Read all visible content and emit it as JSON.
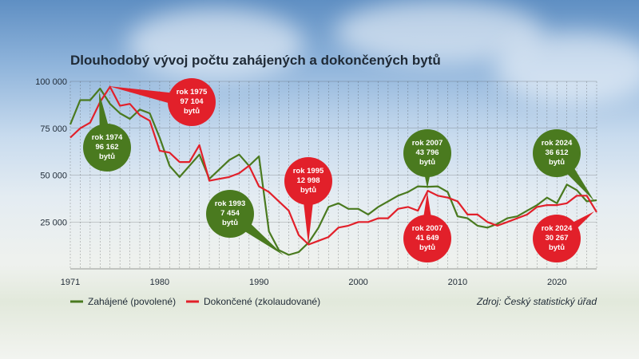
{
  "chart_data": {
    "type": "line",
    "title": "Dlouhodobý vývoj počtu zahájených a dokončených bytů",
    "xlim": [
      1971,
      2024
    ],
    "ylim": [
      0,
      100000
    ],
    "x_ticks": [
      "1971",
      "1980",
      "1990",
      "2000",
      "2010",
      "2020"
    ],
    "y_ticks": [
      "100 000",
      "75 000",
      "50 000",
      "25 000"
    ],
    "grid": "vertical dashed + horizontal",
    "legend_placement": "bottom-left",
    "series": [
      {
        "name": "Zahájené (povolené)",
        "color": "#4a7a1f",
        "x": [
          1971,
          1972,
          1973,
          1974,
          1975,
          1976,
          1977,
          1978,
          1979,
          1980,
          1981,
          1982,
          1983,
          1984,
          1985,
          1986,
          1987,
          1988,
          1989,
          1990,
          1991,
          1992,
          1993,
          1994,
          1995,
          1996,
          1997,
          1998,
          1999,
          2000,
          2001,
          2002,
          2003,
          2004,
          2005,
          2006,
          2007,
          2008,
          2009,
          2010,
          2011,
          2012,
          2013,
          2014,
          2015,
          2016,
          2017,
          2018,
          2019,
          2020,
          2021,
          2022,
          2023,
          2024
        ],
        "values": [
          77000,
          90000,
          90000,
          96162,
          88000,
          83000,
          80000,
          85000,
          83000,
          70000,
          55000,
          49000,
          55000,
          61000,
          48000,
          53000,
          58000,
          61000,
          55000,
          60000,
          20000,
          10000,
          7454,
          9000,
          14000,
          22000,
          33000,
          35000,
          32000,
          32000,
          29000,
          33000,
          36000,
          39000,
          41000,
          44000,
          43796,
          44000,
          41000,
          28000,
          27000,
          23000,
          22000,
          24000,
          27000,
          28000,
          31000,
          34000,
          38000,
          35000,
          45000,
          42000,
          36000,
          36612
        ]
      },
      {
        "name": "Dokončené (zkolaudované)",
        "color": "#e2202a",
        "x": [
          1971,
          1972,
          1973,
          1974,
          1975,
          1976,
          1977,
          1978,
          1979,
          1980,
          1981,
          1982,
          1983,
          1984,
          1985,
          1986,
          1987,
          1988,
          1989,
          1990,
          1991,
          1992,
          1993,
          1994,
          1995,
          1996,
          1997,
          1998,
          1999,
          2000,
          2001,
          2002,
          2003,
          2004,
          2005,
          2006,
          2007,
          2008,
          2009,
          2010,
          2011,
          2012,
          2013,
          2014,
          2015,
          2016,
          2017,
          2018,
          2019,
          2020,
          2021,
          2022,
          2023,
          2024
        ],
        "values": [
          70000,
          75000,
          78000,
          89000,
          97104,
          87000,
          88000,
          82000,
          79000,
          63000,
          62000,
          57000,
          57000,
          66000,
          47000,
          48000,
          49000,
          51000,
          55000,
          44000,
          41000,
          36000,
          31000,
          18000,
          12998,
          15000,
          17000,
          22000,
          23000,
          25000,
          25000,
          27000,
          27000,
          32000,
          33000,
          31000,
          41649,
          39000,
          38000,
          36000,
          29000,
          29000,
          25000,
          23000,
          25000,
          27000,
          29000,
          33000,
          34000,
          34000,
          35000,
          39000,
          39000,
          30267
        ]
      }
    ],
    "callouts": [
      {
        "lines": [
          "rok 1974",
          "96 162",
          "bytů"
        ],
        "color": "#4a7a1f"
      },
      {
        "lines": [
          "rok 1975",
          "97 104",
          "bytů"
        ],
        "color": "#e2202a"
      },
      {
        "lines": [
          "rok 1993",
          "7 454",
          "bytů"
        ],
        "color": "#4a7a1f"
      },
      {
        "lines": [
          "rok 1995",
          "12 998",
          "bytů"
        ],
        "color": "#e2202a"
      },
      {
        "lines": [
          "rok 2007",
          "43 796",
          "bytů"
        ],
        "color": "#4a7a1f"
      },
      {
        "lines": [
          "rok 2007",
          "41 649",
          "bytů"
        ],
        "color": "#e2202a"
      },
      {
        "lines": [
          "rok 2024",
          "36 612",
          "bytů"
        ],
        "color": "#4a7a1f"
      },
      {
        "lines": [
          "rok 2024",
          "30 267",
          "bytů"
        ],
        "color": "#e2202a"
      }
    ],
    "source": "Zdroj: Český statistický úřad"
  }
}
